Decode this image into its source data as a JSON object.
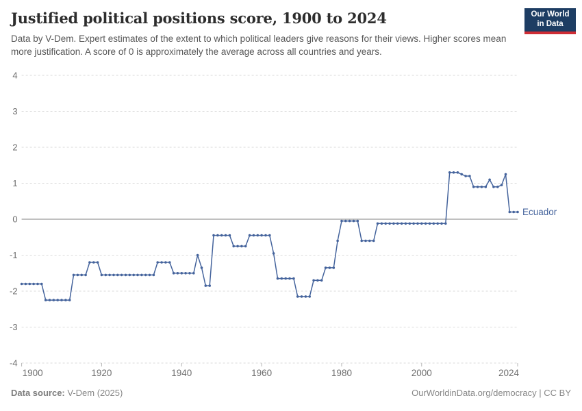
{
  "header": {
    "title": "Justified political positions score, 1900 to 2024",
    "subtitle": "Data by V-Dem. Expert estimates of the extent to which political leaders give reasons for their views. Higher scores mean more justification. A score of 0 is approximately the average across all countries and years."
  },
  "logo": {
    "line1": "Our World",
    "line2": "in Data",
    "bg_color": "#1d3d63",
    "accent_color": "#cf2d35"
  },
  "chart_data": {
    "type": "line",
    "title": "Justified political positions score, 1900 to 2024",
    "xlabel": "",
    "ylabel": "",
    "xlim": [
      1900,
      2024
    ],
    "ylim": [
      -4,
      4
    ],
    "x_ticks": [
      1900,
      1920,
      1940,
      1960,
      1980,
      2000,
      2024
    ],
    "y_ticks": [
      4,
      3,
      2,
      1,
      0,
      -1,
      -2,
      -3,
      -4
    ],
    "grid": "dashed horizontal gridlines, solid zero line",
    "legend_position": "end-of-line label",
    "series": [
      {
        "name": "Ecuador",
        "color": "#44639c",
        "start_year": 1900,
        "values": [
          -1.8,
          -1.8,
          -1.8,
          -1.8,
          -1.8,
          -1.8,
          -2.25,
          -2.25,
          -2.25,
          -2.25,
          -2.25,
          -2.25,
          -2.25,
          -1.55,
          -1.55,
          -1.55,
          -1.55,
          -1.2,
          -1.2,
          -1.2,
          -1.55,
          -1.55,
          -1.55,
          -1.55,
          -1.55,
          -1.55,
          -1.55,
          -1.55,
          -1.55,
          -1.55,
          -1.55,
          -1.55,
          -1.55,
          -1.55,
          -1.2,
          -1.2,
          -1.2,
          -1.2,
          -1.5,
          -1.5,
          -1.5,
          -1.5,
          -1.5,
          -1.5,
          -1.0,
          -1.35,
          -1.85,
          -1.85,
          -0.45,
          -0.45,
          -0.45,
          -0.45,
          -0.45,
          -0.75,
          -0.75,
          -0.75,
          -0.75,
          -0.45,
          -0.45,
          -0.45,
          -0.45,
          -0.45,
          -0.45,
          -0.95,
          -1.65,
          -1.65,
          -1.65,
          -1.65,
          -1.65,
          -2.15,
          -2.15,
          -2.15,
          -2.15,
          -1.7,
          -1.7,
          -1.7,
          -1.35,
          -1.35,
          -1.35,
          -0.6,
          -0.05,
          -0.05,
          -0.05,
          -0.05,
          -0.05,
          -0.6,
          -0.6,
          -0.6,
          -0.6,
          -0.12,
          -0.12,
          -0.12,
          -0.12,
          -0.12,
          -0.12,
          -0.12,
          -0.12,
          -0.12,
          -0.12,
          -0.12,
          -0.12,
          -0.12,
          -0.12,
          -0.12,
          -0.12,
          -0.12,
          -0.12,
          1.3,
          1.3,
          1.3,
          1.25,
          1.2,
          1.2,
          0.9,
          0.9,
          0.9,
          0.9,
          1.1,
          0.9,
          0.9,
          0.95,
          1.25,
          0.2,
          0.2,
          0.2
        ]
      }
    ],
    "entity_label": "Ecuador",
    "colors": {
      "line": "#44639c",
      "gridline": "#dadada",
      "zero_line": "#9a9a9a",
      "tick_label": "#6e6e6e"
    }
  },
  "footer": {
    "source_label": "Data source:",
    "source_value": "V-Dem (2025)",
    "right": "OurWorldinData.org/democracy | CC BY"
  }
}
